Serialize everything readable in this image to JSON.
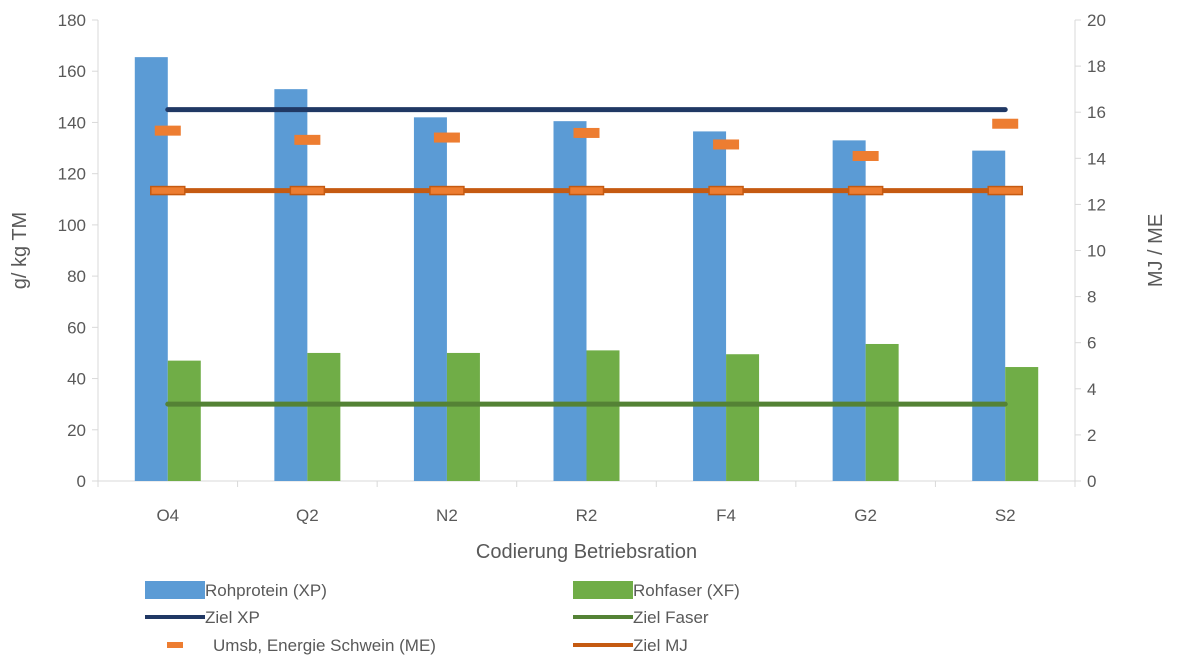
{
  "chart_data": {
    "type": "bar",
    "categories": [
      "O4",
      "Q2",
      "N2",
      "R2",
      "F4",
      "G2",
      "S2"
    ],
    "xlabel": "Codierung Betriebsration",
    "ylabel_left": "g/ kg TM",
    "ylabel_right": "MJ / ME",
    "ylim_left": [
      0,
      180
    ],
    "yticks_left": [
      0,
      20,
      40,
      60,
      80,
      100,
      120,
      140,
      160,
      180
    ],
    "ylim_right": [
      0,
      20
    ],
    "yticks_right": [
      0,
      2,
      4,
      6,
      8,
      10,
      12,
      14,
      16,
      18,
      20
    ],
    "grid": false,
    "legend_position": "bottom",
    "series": [
      {
        "name": "Rohprotein (XP)",
        "kind": "bar",
        "axis": "left",
        "color": "#5b9bd5",
        "values": [
          165.5,
          153,
          142,
          140.5,
          136.5,
          133,
          129
        ]
      },
      {
        "name": "Rohfaser (XF)",
        "kind": "bar",
        "axis": "left",
        "color": "#70ad47",
        "values": [
          47,
          50,
          50,
          51,
          49.5,
          53.5,
          44.5
        ]
      },
      {
        "name": "Ziel XP",
        "kind": "line",
        "axis": "left",
        "color": "#203864",
        "values": [
          145,
          145,
          145,
          145,
          145,
          145,
          145
        ]
      },
      {
        "name": "Ziel Faser",
        "kind": "line",
        "axis": "left",
        "color": "#548235",
        "values": [
          30,
          30,
          30,
          30,
          30,
          30,
          30
        ]
      },
      {
        "name": "Umsb, Energie Schwein (ME)",
        "kind": "marker",
        "axis": "right",
        "color": "#ed7d31",
        "values": [
          15.2,
          14.8,
          14.9,
          15.1,
          14.6,
          14.1,
          15.5
        ]
      },
      {
        "name": "Ziel MJ",
        "kind": "line",
        "axis": "right",
        "color": "#c55a11",
        "values": [
          12.6,
          12.6,
          12.6,
          12.6,
          12.6,
          12.6,
          12.6
        ]
      }
    ],
    "legend_order": [
      "Rohprotein (XP)",
      "Rohfaser (XF)",
      "Ziel XP",
      "Ziel Faser",
      "Umsb, Energie Schwein (ME)",
      "Ziel MJ"
    ]
  }
}
